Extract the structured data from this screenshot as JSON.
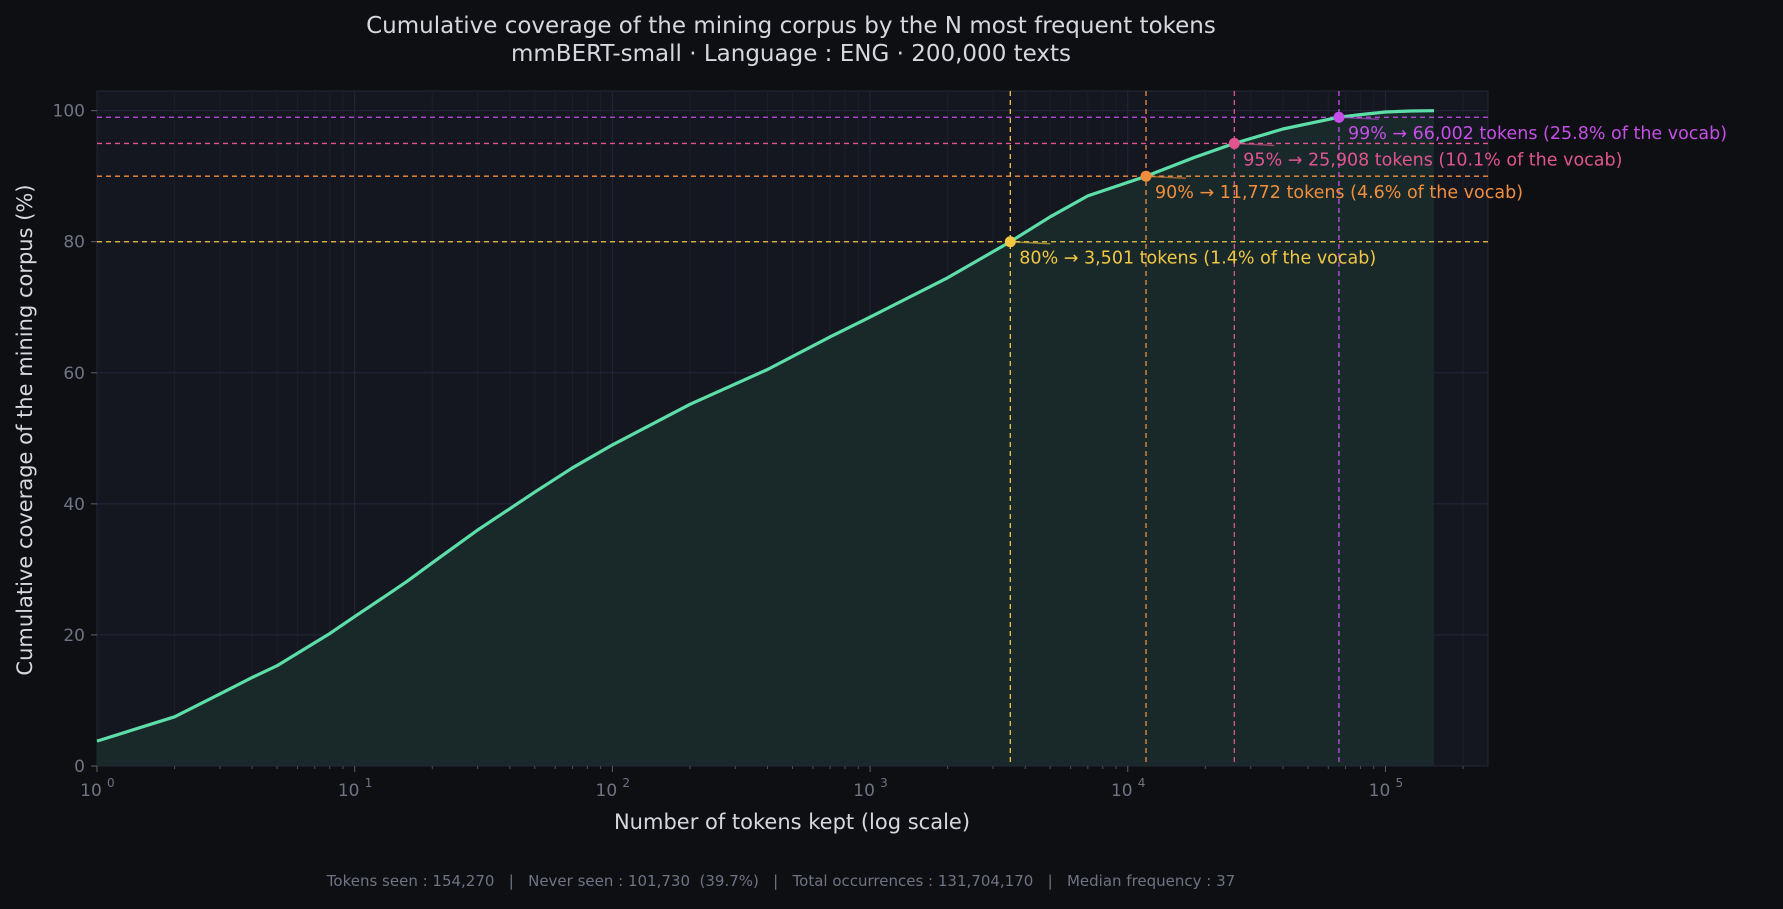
{
  "figure": {
    "background": "#0e0f13",
    "plot_background": "#141620",
    "title_line1": "Cumulative coverage of the mining corpus by the N most frequent tokens",
    "title_line2": "mmBERT-small  ·  Language : ENG  ·  200,000 texts",
    "footer": "Tokens seen : 154,270   |   Never seen : 101,730  (39.7%)   |   Total occurrences : 131,704,170   |   Median frequency : 37"
  },
  "chart_data": {
    "type": "area",
    "xlabel": "Number of tokens kept (log scale)",
    "ylabel": "Cumulative coverage of the mining corpus (%)",
    "x_scale": "log",
    "xlim": [
      1,
      250000
    ],
    "ylim": [
      0,
      103
    ],
    "x_ticks": [
      {
        "value": 1,
        "base": "10",
        "exp": "0"
      },
      {
        "value": 10,
        "base": "10",
        "exp": "1"
      },
      {
        "value": 100,
        "base": "10",
        "exp": "2"
      },
      {
        "value": 1000,
        "base": "10",
        "exp": "3"
      },
      {
        "value": 10000,
        "base": "10",
        "exp": "4"
      },
      {
        "value": 100000,
        "base": "10",
        "exp": "5"
      }
    ],
    "y_ticks": [
      0,
      20,
      40,
      60,
      80,
      100
    ],
    "grid": true,
    "line_color": "#5ddea8",
    "fill_color": "#1a2c2a",
    "x": [
      1,
      2,
      3,
      4,
      5,
      6,
      8,
      10,
      13,
      16,
      20,
      30,
      50,
      70,
      100,
      200,
      400,
      700,
      1000,
      2000,
      3501,
      5000,
      7000,
      11772,
      18000,
      25908,
      40000,
      66002,
      80000,
      100000,
      125000,
      154270
    ],
    "y": [
      3.8,
      7.5,
      11.0,
      13.5,
      15.3,
      17.2,
      20.2,
      22.8,
      25.8,
      28.2,
      31.0,
      36.0,
      41.8,
      45.5,
      49.0,
      55.2,
      60.5,
      65.5,
      68.5,
      74.5,
      80.0,
      83.8,
      87.0,
      90.0,
      92.8,
      95.0,
      97.2,
      99.0,
      99.4,
      99.8,
      99.95,
      100.0
    ],
    "thresholds": [
      {
        "coverage": 80,
        "tokens": 3501,
        "label": "80%  →  3,501 tokens  (1.4% of the vocab)",
        "color": "#f2c744"
      },
      {
        "coverage": 90,
        "tokens": 11772,
        "label": "90%  →  11,772 tokens  (4.6% of the vocab)",
        "color": "#f18e3e"
      },
      {
        "coverage": 95,
        "tokens": 25908,
        "label": "95%  →  25,908 tokens  (10.1% of the vocab)",
        "color": "#e0558f"
      },
      {
        "coverage": 99,
        "tokens": 66002,
        "label": "99%  →  66,002 tokens  (25.8% of the vocab)",
        "color": "#c64ee8"
      }
    ]
  }
}
